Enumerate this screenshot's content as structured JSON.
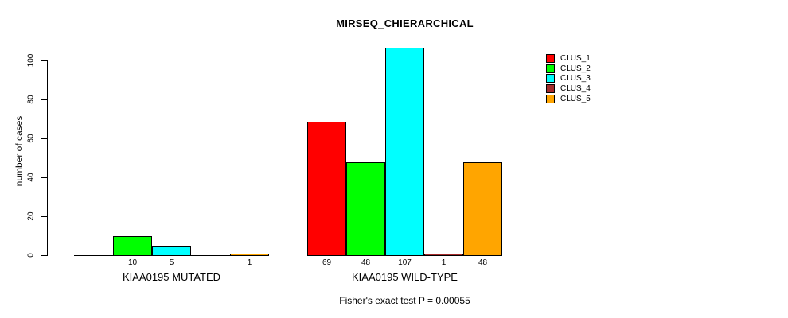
{
  "chart_data": {
    "type": "bar",
    "title": "MIRSEQ_CHIERARCHICAL",
    "xlabel": "",
    "ylabel": "number of cases",
    "annotation": "Fisher's exact test P = 0.00055",
    "ylim": [
      0,
      110
    ],
    "yticks": [
      0,
      20,
      40,
      60,
      80,
      100
    ],
    "grid": false,
    "legend_position": "top-right",
    "categories": [
      "KIAA0195 MUTATED",
      "KIAA0195 WILD-TYPE"
    ],
    "series": [
      {
        "name": "CLUS_1",
        "color": "#FF0000",
        "values": [
          0,
          69
        ]
      },
      {
        "name": "CLUS_2",
        "color": "#00FF00",
        "values": [
          10,
          48
        ]
      },
      {
        "name": "CLUS_3",
        "color": "#00FFFF",
        "values": [
          5,
          107
        ]
      },
      {
        "name": "CLUS_4",
        "color": "#A52A2A",
        "values": [
          0,
          1
        ]
      },
      {
        "name": "CLUS_5",
        "color": "#FFA500",
        "values": [
          1,
          48
        ]
      }
    ],
    "bar_labels_shown": {
      "KIAA0195 MUTATED": [
        "10",
        "5",
        "1"
      ],
      "KIAA0195 WILD-TYPE": [
        "69",
        "48",
        "107",
        "1",
        "48"
      ]
    }
  }
}
